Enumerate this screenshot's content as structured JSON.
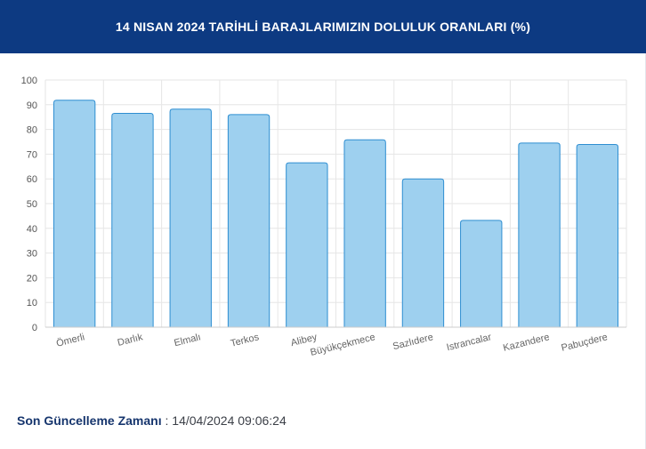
{
  "header": {
    "title": "14 NISAN 2024 TARİHLİ BARAJLARIMIZIN DOLULUK ORANLARI (%)"
  },
  "footer": {
    "label": "Son Güncelleme Zamanı",
    "separator": " : ",
    "value": "14/04/2024 09:06:24"
  },
  "colors": {
    "header_bg": "#0d3a82",
    "bar_fill": "#9ed0ef",
    "bar_stroke": "#2e8ed1",
    "grid": "#e6e6e6",
    "footer_label": "#16356d"
  },
  "chart_data": {
    "type": "bar",
    "categories": [
      "Ömerli",
      "Darlık",
      "Elmalı",
      "Terkos",
      "Alibey",
      "Büyükçekmece",
      "Sazlıdere",
      "Istrancalar",
      "Kazandere",
      "Pabuçdere"
    ],
    "values": [
      91.8,
      86.5,
      88.2,
      86.0,
      66.5,
      75.8,
      60.0,
      43.2,
      74.5,
      73.9
    ],
    "ylim": [
      0,
      100
    ],
    "yticks": [
      0,
      10,
      20,
      30,
      40,
      50,
      60,
      70,
      80,
      90,
      100
    ],
    "title": "",
    "xlabel": "",
    "ylabel": "",
    "grid": true,
    "legend": "none"
  }
}
